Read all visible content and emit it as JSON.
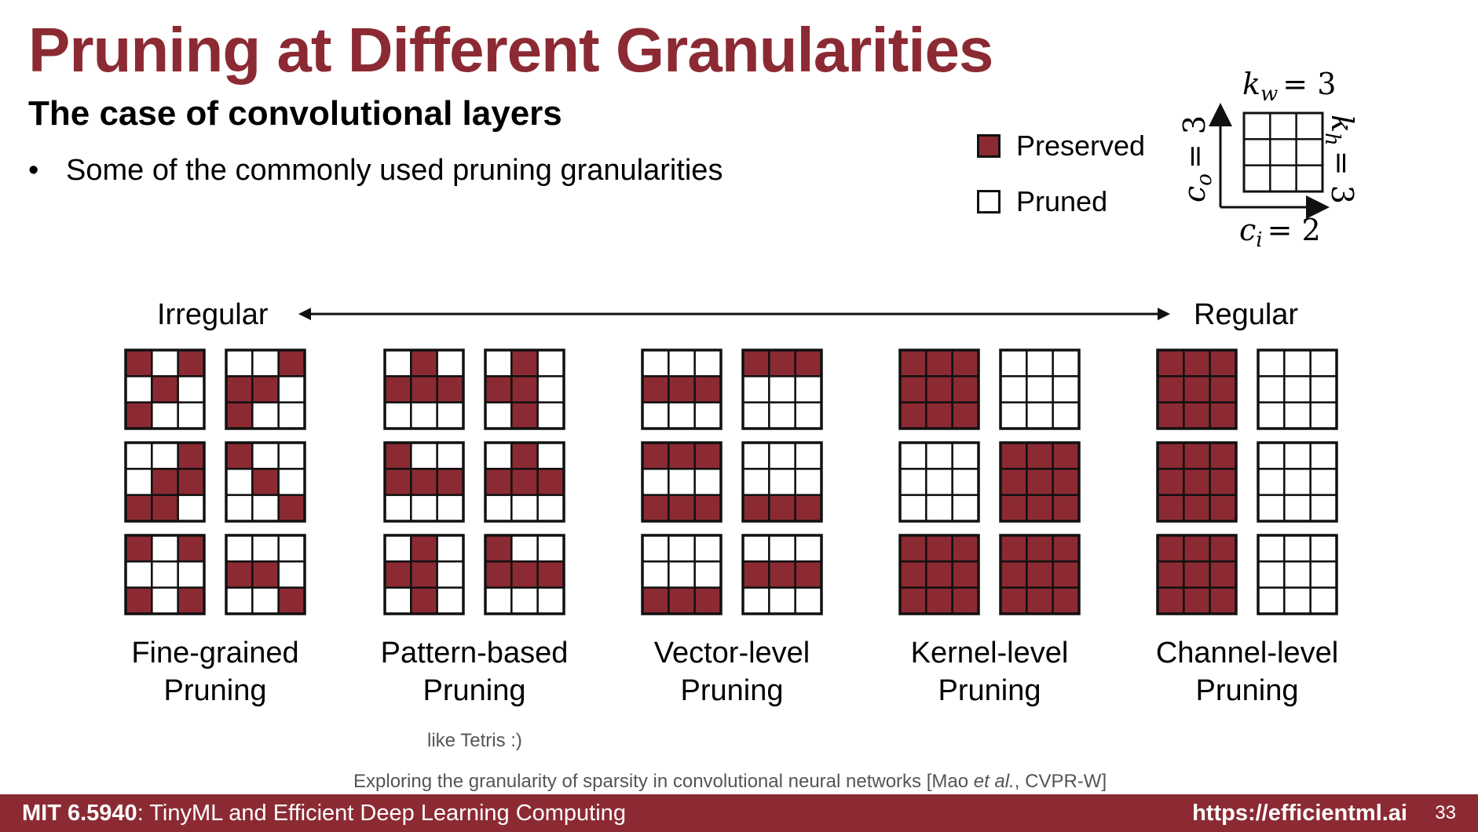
{
  "title": "Pruning at Different Granularities",
  "subtitle": "The case of convolutional layers",
  "bullet": "Some of the commonly used pruning granularities",
  "bullet_symbol": "•",
  "legend": {
    "preserved_label": "Preserved",
    "pruned_label": "Pruned",
    "preserved_color": "#8c2a33",
    "pruned_color": "#ffffff"
  },
  "kernel_dims": {
    "kw_var": "k",
    "kw_sub": "w",
    "kw_val": "= 3",
    "kh_var": "k",
    "kh_sub": "h",
    "kh_val": "= 3",
    "co_var": "c",
    "co_sub": "o",
    "co_val": "= 3",
    "ci_var": "c",
    "ci_sub": "i",
    "ci_val": "= 2"
  },
  "scale": {
    "left": "Irregular",
    "right": "Regular"
  },
  "categories": [
    {
      "line1": "Fine-grained",
      "line2": "Pruning",
      "kernels": [
        [
          [
            1,
            0,
            1
          ],
          [
            0,
            1,
            0
          ],
          [
            1,
            0,
            0
          ]
        ],
        [
          [
            0,
            0,
            1
          ],
          [
            1,
            1,
            0
          ],
          [
            1,
            0,
            0
          ]
        ],
        [
          [
            0,
            0,
            1
          ],
          [
            0,
            1,
            1
          ],
          [
            1,
            1,
            0
          ]
        ],
        [
          [
            1,
            0,
            0
          ],
          [
            0,
            1,
            0
          ],
          [
            0,
            0,
            1
          ]
        ],
        [
          [
            1,
            0,
            1
          ],
          [
            0,
            0,
            0
          ],
          [
            1,
            0,
            1
          ]
        ],
        [
          [
            0,
            0,
            0
          ],
          [
            1,
            1,
            0
          ],
          [
            0,
            0,
            1
          ]
        ]
      ]
    },
    {
      "line1": "Pattern-based",
      "line2": "Pruning",
      "kernels": [
        [
          [
            0,
            1,
            0
          ],
          [
            1,
            1,
            1
          ],
          [
            0,
            0,
            0
          ]
        ],
        [
          [
            0,
            1,
            0
          ],
          [
            1,
            1,
            0
          ],
          [
            0,
            1,
            0
          ]
        ],
        [
          [
            1,
            0,
            0
          ],
          [
            1,
            1,
            1
          ],
          [
            0,
            0,
            0
          ]
        ],
        [
          [
            0,
            1,
            0
          ],
          [
            1,
            1,
            1
          ],
          [
            0,
            0,
            0
          ]
        ],
        [
          [
            0,
            1,
            0
          ],
          [
            1,
            1,
            0
          ],
          [
            0,
            1,
            0
          ]
        ],
        [
          [
            1,
            0,
            0
          ],
          [
            1,
            1,
            1
          ],
          [
            0,
            0,
            0
          ]
        ]
      ]
    },
    {
      "line1": "Vector-level",
      "line2": "Pruning",
      "kernels": [
        [
          [
            0,
            0,
            0
          ],
          [
            1,
            1,
            1
          ],
          [
            0,
            0,
            0
          ]
        ],
        [
          [
            1,
            1,
            1
          ],
          [
            0,
            0,
            0
          ],
          [
            0,
            0,
            0
          ]
        ],
        [
          [
            1,
            1,
            1
          ],
          [
            0,
            0,
            0
          ],
          [
            1,
            1,
            1
          ]
        ],
        [
          [
            0,
            0,
            0
          ],
          [
            0,
            0,
            0
          ],
          [
            1,
            1,
            1
          ]
        ],
        [
          [
            0,
            0,
            0
          ],
          [
            0,
            0,
            0
          ],
          [
            1,
            1,
            1
          ]
        ],
        [
          [
            0,
            0,
            0
          ],
          [
            1,
            1,
            1
          ],
          [
            0,
            0,
            0
          ]
        ]
      ]
    },
    {
      "line1": "Kernel-level",
      "line2": "Pruning",
      "kernels": [
        [
          [
            1,
            1,
            1
          ],
          [
            1,
            1,
            1
          ],
          [
            1,
            1,
            1
          ]
        ],
        [
          [
            0,
            0,
            0
          ],
          [
            0,
            0,
            0
          ],
          [
            0,
            0,
            0
          ]
        ],
        [
          [
            0,
            0,
            0
          ],
          [
            0,
            0,
            0
          ],
          [
            0,
            0,
            0
          ]
        ],
        [
          [
            1,
            1,
            1
          ],
          [
            1,
            1,
            1
          ],
          [
            1,
            1,
            1
          ]
        ],
        [
          [
            1,
            1,
            1
          ],
          [
            1,
            1,
            1
          ],
          [
            1,
            1,
            1
          ]
        ],
        [
          [
            1,
            1,
            1
          ],
          [
            1,
            1,
            1
          ],
          [
            1,
            1,
            1
          ]
        ]
      ]
    },
    {
      "line1": "Channel-level",
      "line2": "Pruning",
      "kernels": [
        [
          [
            1,
            1,
            1
          ],
          [
            1,
            1,
            1
          ],
          [
            1,
            1,
            1
          ]
        ],
        [
          [
            0,
            0,
            0
          ],
          [
            0,
            0,
            0
          ],
          [
            0,
            0,
            0
          ]
        ],
        [
          [
            1,
            1,
            1
          ],
          [
            1,
            1,
            1
          ],
          [
            1,
            1,
            1
          ]
        ],
        [
          [
            0,
            0,
            0
          ],
          [
            0,
            0,
            0
          ],
          [
            0,
            0,
            0
          ]
        ],
        [
          [
            1,
            1,
            1
          ],
          [
            1,
            1,
            1
          ],
          [
            1,
            1,
            1
          ]
        ],
        [
          [
            0,
            0,
            0
          ],
          [
            0,
            0,
            0
          ],
          [
            0,
            0,
            0
          ]
        ]
      ]
    }
  ],
  "note": "like Tetris :)",
  "citation": {
    "prefix": "Exploring the granularity of sparsity in convolutional neural networks [Mao ",
    "etal": "et al.",
    "suffix": ", CVPR-W]"
  },
  "footer": {
    "course_bold": "MIT 6.5940",
    "course_rest": ": TinyML and Efficient Deep Learning Computing",
    "url": "https://efficientml.ai",
    "page": "33"
  }
}
